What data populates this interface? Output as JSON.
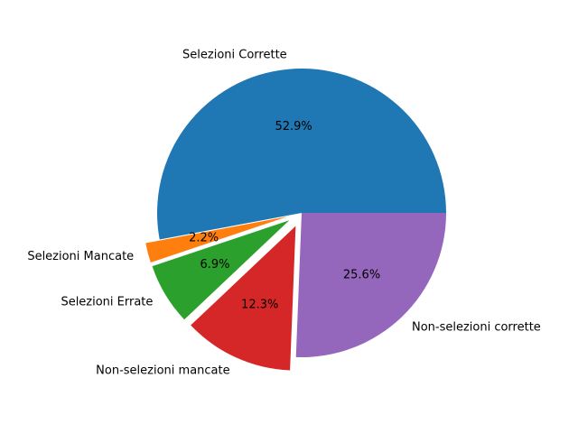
{
  "chart_data": {
    "type": "pie",
    "title": "",
    "slices": [
      {
        "label": "Selezioni Corrette",
        "value": 52.9,
        "pct_label": "52.9%",
        "color": "#1f77b4",
        "explode": 0
      },
      {
        "label": "Selezioni Mancate",
        "value": 2.2,
        "pct_label": "2.2%",
        "color": "#ff7f0e",
        "explode": 0.1
      },
      {
        "label": "Selezioni Errate",
        "value": 6.9,
        "pct_label": "6.9%",
        "color": "#2ca02c",
        "explode": 0.1
      },
      {
        "label": "Non-selezioni mancate",
        "value": 12.3,
        "pct_label": "12.3%",
        "color": "#d62728",
        "explode": 0.1
      },
      {
        "label": "Non-selezioni corrette",
        "value": 25.6,
        "pct_label": "25.6%",
        "color": "#9467bd",
        "explode": 0
      }
    ],
    "start_angle_deg": 0,
    "direction": "counterclockwise",
    "legend": "none"
  }
}
